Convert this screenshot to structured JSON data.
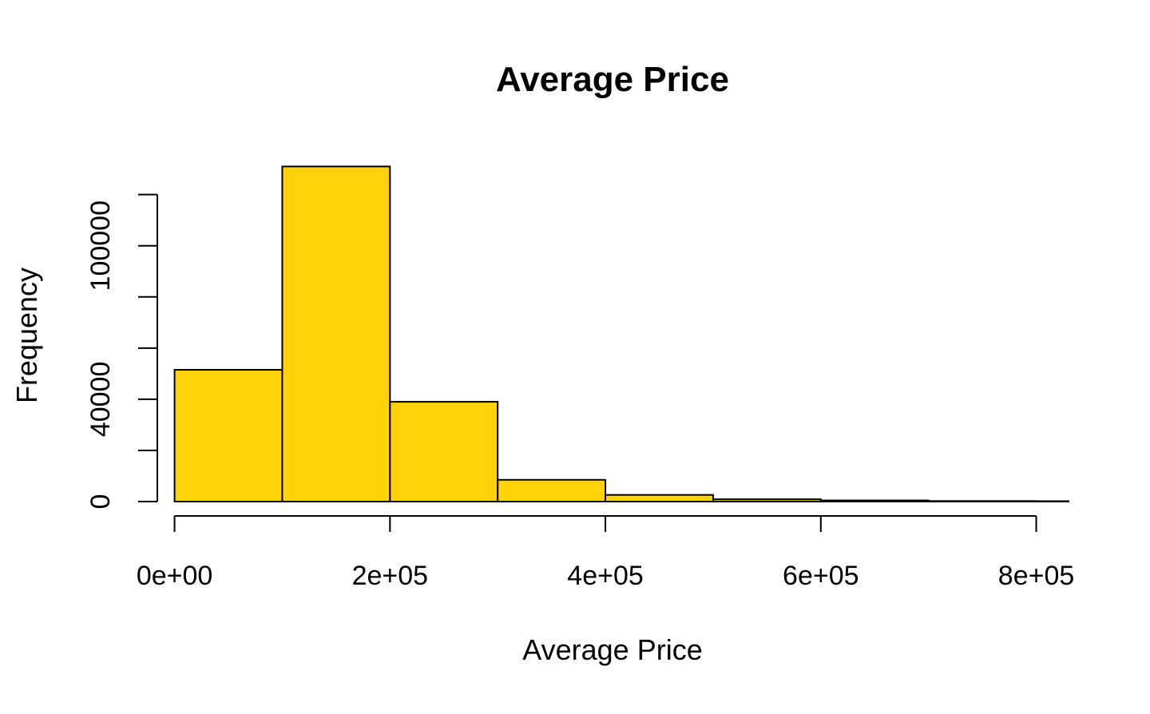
{
  "chart_data": {
    "type": "bar",
    "subtype": "histogram",
    "title": "Average Price",
    "xlabel": "Average Price",
    "ylabel": "Frequency",
    "bin_edges": [
      0,
      100000,
      200000,
      300000,
      400000,
      500000,
      600000,
      700000,
      800000,
      830000
    ],
    "values": [
      51500,
      131000,
      39000,
      8500,
      2600,
      900,
      450,
      200,
      100
    ],
    "xlim": [
      -16000,
      830000
    ],
    "ylim": [
      0,
      143000
    ],
    "xticks": [
      0,
      200000,
      400000,
      600000,
      800000
    ],
    "xtick_labels": [
      "0e+00",
      "2e+05",
      "4e+05",
      "6e+05",
      "8e+05"
    ],
    "yticks": [
      0,
      20000,
      40000,
      60000,
      80000,
      100000,
      120000
    ],
    "ytick_labels": [
      "0",
      "",
      "40000",
      "",
      "",
      "100000",
      ""
    ],
    "bar_color": "#FFD20A",
    "edge_color": "#000000",
    "grid": false,
    "legend": "none"
  }
}
